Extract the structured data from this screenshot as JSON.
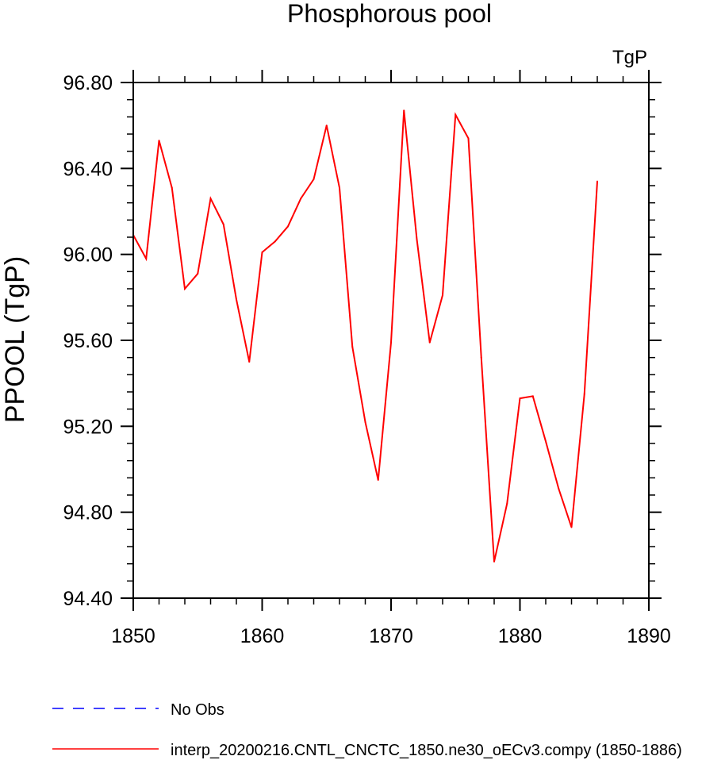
{
  "chart_data": {
    "type": "line",
    "title": "Phosphorous pool",
    "units_label": "TgP",
    "ylabel": "PPOOL  (TgP)",
    "xlabel": "",
    "xlim": [
      1850,
      1890
    ],
    "ylim": [
      94.4,
      96.8
    ],
    "x_ticks": [
      1850,
      1860,
      1870,
      1880,
      1890
    ],
    "x_tick_labels": [
      "1850",
      "1860",
      "1870",
      "1880",
      "1890"
    ],
    "y_ticks": [
      94.4,
      94.8,
      95.2,
      95.6,
      96.0,
      96.4,
      96.8
    ],
    "y_tick_labels": [
      "94.40",
      "94.80",
      "95.20",
      "95.60",
      "96.00",
      "96.40",
      "96.80"
    ],
    "grid": false,
    "legend_position": "bottom-left",
    "series": [
      {
        "name": "interp_20200216.CNTL_CNCTC_1850.ne30_oECv3.compy (1850-1886)",
        "color": "#ff0000",
        "dash": "solid",
        "x": [
          1850,
          1851,
          1852,
          1853,
          1854,
          1855,
          1856,
          1857,
          1858,
          1859,
          1860,
          1861,
          1862,
          1863,
          1864,
          1865,
          1866,
          1867,
          1868,
          1869,
          1870,
          1871,
          1872,
          1873,
          1874,
          1875,
          1876,
          1877,
          1878,
          1879,
          1880,
          1881,
          1882,
          1883,
          1884,
          1885,
          1886
        ],
        "values": [
          96.09,
          95.98,
          96.53,
          96.31,
          95.84,
          95.91,
          96.26,
          96.14,
          95.79,
          95.5,
          96.01,
          96.06,
          96.13,
          96.26,
          96.35,
          96.6,
          96.31,
          95.57,
          95.22,
          94.95,
          95.59,
          96.67,
          96.07,
          95.59,
          95.81,
          96.65,
          96.54,
          95.52,
          94.57,
          94.84,
          95.33,
          95.34,
          95.13,
          94.91,
          94.73,
          95.35,
          96.34
        ]
      }
    ],
    "legend": [
      {
        "label": "No Obs",
        "color": "#0000ff",
        "dash": "dashed"
      },
      {
        "label": "interp_20200216.CNTL_CNCTC_1850.ne30_oECv3.compy (1850-1886)",
        "color": "#ff0000",
        "dash": "solid"
      }
    ]
  }
}
